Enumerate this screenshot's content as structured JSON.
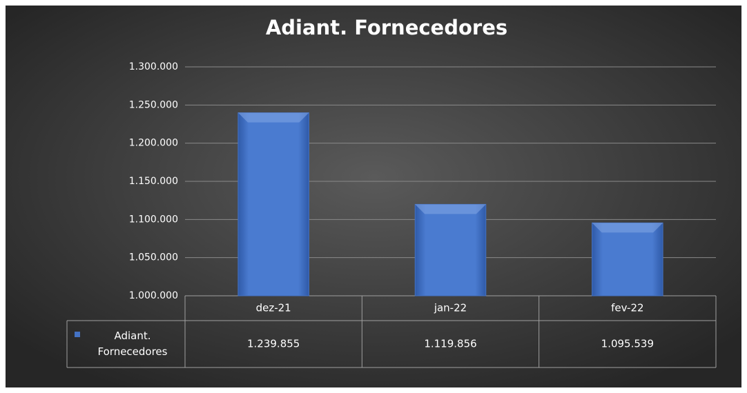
{
  "chart_data": {
    "type": "bar",
    "title": "Adiant. Fornecedores",
    "categories": [
      "dez-21",
      "jan-22",
      "fev-22"
    ],
    "series": [
      {
        "name": "Adiant. Fornecedores",
        "color": "#4472c4",
        "values": [
          1239855,
          1119856,
          1095539
        ],
        "value_labels": [
          "1.239.855",
          "1.119.856",
          "1.095.539"
        ]
      }
    ],
    "ylim": [
      1000000,
      1300000
    ],
    "yticks": [
      {
        "value": 1000000,
        "label": "1.000.000"
      },
      {
        "value": 1050000,
        "label": "1.050.000"
      },
      {
        "value": 1100000,
        "label": "1.100.000"
      },
      {
        "value": 1150000,
        "label": "1.150.000"
      },
      {
        "value": 1200000,
        "label": "1.200.000"
      },
      {
        "value": 1250000,
        "label": "1.250.000"
      },
      {
        "value": 1300000,
        "label": "1.300.000"
      }
    ],
    "grid": true,
    "data_table": true
  }
}
